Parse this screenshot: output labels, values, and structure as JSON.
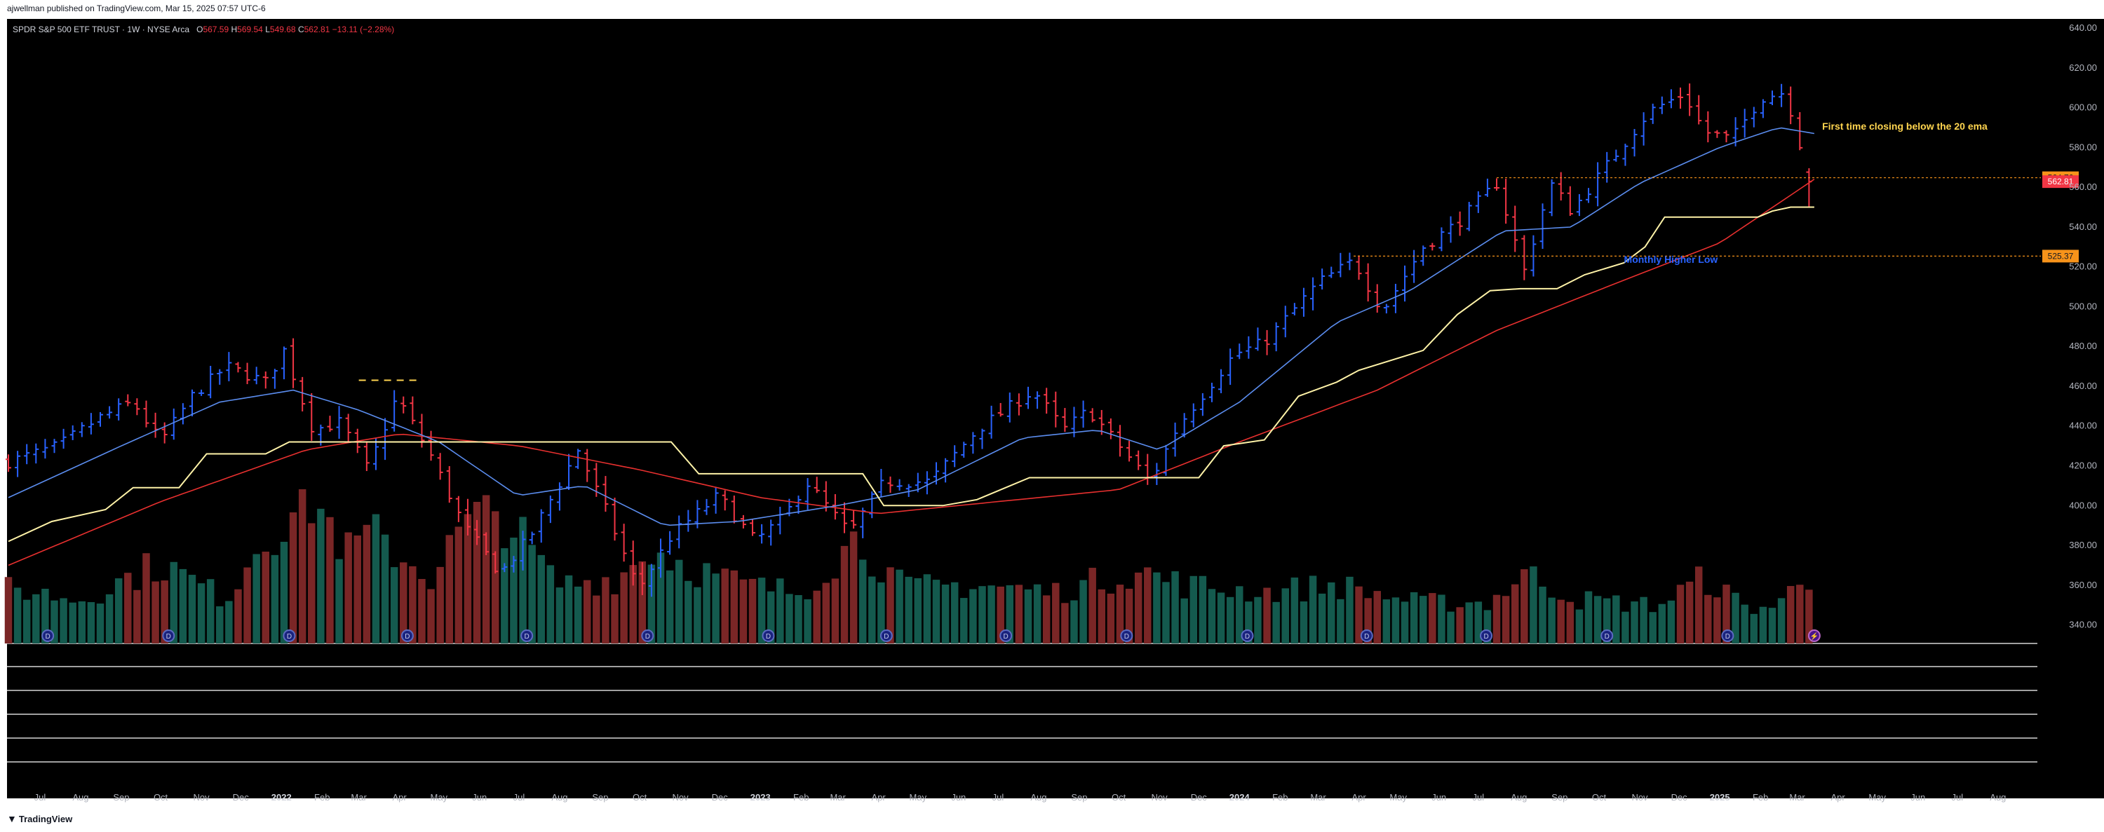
{
  "caption": "ajwellman published on TradingView.com, Mar 15, 2025 07:57 UTC-6",
  "brand": "TradingView",
  "legend": {
    "symbol": "SPDR S&P 500 ETF TRUST · 1W · NYSE Arca",
    "o_label": "O",
    "o": "567.59",
    "h_label": "H",
    "h": "569.54",
    "l_label": "L",
    "l": "549.68",
    "c_label": "C",
    "c": "562.81",
    "change": "−13.11 (−2.28%)"
  },
  "colors": {
    "up": "#2962ff",
    "down": "#f23645",
    "ema20": "#5b8def",
    "ema_slow": "#e8302f",
    "stop_line": "#fff3a8",
    "vol_up": "#145a4e",
    "vol_down": "#7a2626",
    "label_orange": "#f7931a",
    "label_red": "#f23645",
    "annotation_yellow": "#ffd54f",
    "annotation_blue": "#2962ff"
  },
  "chart_data": {
    "type": "ohlc",
    "y_axis": {
      "min": 330,
      "max": 640,
      "ticks": [
        340,
        360,
        380,
        400,
        420,
        440,
        460,
        480,
        500,
        520,
        540,
        560,
        580,
        600,
        620,
        640
      ]
    },
    "x_axis": {
      "start": "2021-06-07",
      "end": "2025-08-31",
      "tick_labels": [
        {
          "label": "Jul",
          "date": "2021-07-01",
          "bold": false
        },
        {
          "label": "Aug",
          "date": "2021-08-01",
          "bold": false
        },
        {
          "label": "Sep",
          "date": "2021-09-01",
          "bold": false
        },
        {
          "label": "Oct",
          "date": "2021-10-01",
          "bold": false
        },
        {
          "label": "Nov",
          "date": "2021-11-01",
          "bold": false
        },
        {
          "label": "Dec",
          "date": "2021-12-01",
          "bold": false
        },
        {
          "label": "2022",
          "date": "2022-01-01",
          "bold": true
        },
        {
          "label": "Feb",
          "date": "2022-02-01",
          "bold": false
        },
        {
          "label": "Mar",
          "date": "2022-03-01",
          "bold": false
        },
        {
          "label": "Apr",
          "date": "2022-04-01",
          "bold": false
        },
        {
          "label": "May",
          "date": "2022-05-01",
          "bold": false
        },
        {
          "label": "Jun",
          "date": "2022-06-01",
          "bold": false
        },
        {
          "label": "Jul",
          "date": "2022-07-01",
          "bold": false
        },
        {
          "label": "Aug",
          "date": "2022-08-01",
          "bold": false
        },
        {
          "label": "Sep",
          "date": "2022-09-01",
          "bold": false
        },
        {
          "label": "Oct",
          "date": "2022-10-01",
          "bold": false
        },
        {
          "label": "Nov",
          "date": "2022-11-01",
          "bold": false
        },
        {
          "label": "Dec",
          "date": "2022-12-01",
          "bold": false
        },
        {
          "label": "2023",
          "date": "2023-01-01",
          "bold": true
        },
        {
          "label": "Feb",
          "date": "2023-02-01",
          "bold": false
        },
        {
          "label": "Mar",
          "date": "2023-03-01",
          "bold": false
        },
        {
          "label": "Apr",
          "date": "2023-04-01",
          "bold": false
        },
        {
          "label": "May",
          "date": "2023-05-01",
          "bold": false
        },
        {
          "label": "Jun",
          "date": "2023-06-01",
          "bold": false
        },
        {
          "label": "Jul",
          "date": "2023-07-01",
          "bold": false
        },
        {
          "label": "Aug",
          "date": "2023-08-01",
          "bold": false
        },
        {
          "label": "Sep",
          "date": "2023-09-01",
          "bold": false
        },
        {
          "label": "Oct",
          "date": "2023-10-01",
          "bold": false
        },
        {
          "label": "Nov",
          "date": "2023-11-01",
          "bold": false
        },
        {
          "label": "Dec",
          "date": "2023-12-01",
          "bold": false
        },
        {
          "label": "2024",
          "date": "2024-01-01",
          "bold": true
        },
        {
          "label": "Feb",
          "date": "2024-02-01",
          "bold": false
        },
        {
          "label": "Mar",
          "date": "2024-03-01",
          "bold": false
        },
        {
          "label": "Apr",
          "date": "2024-04-01",
          "bold": false
        },
        {
          "label": "May",
          "date": "2024-05-01",
          "bold": false
        },
        {
          "label": "Jun",
          "date": "2024-06-01",
          "bold": false
        },
        {
          "label": "Jul",
          "date": "2024-07-01",
          "bold": false
        },
        {
          "label": "Aug",
          "date": "2024-08-01",
          "bold": false
        },
        {
          "label": "Sep",
          "date": "2024-09-01",
          "bold": false
        },
        {
          "label": "Oct",
          "date": "2024-10-01",
          "bold": false
        },
        {
          "label": "Nov",
          "date": "2024-11-01",
          "bold": false
        },
        {
          "label": "Dec",
          "date": "2024-12-01",
          "bold": false
        },
        {
          "label": "2025",
          "date": "2025-01-01",
          "bold": true
        },
        {
          "label": "Feb",
          "date": "2025-02-01",
          "bold": false
        },
        {
          "label": "Mar",
          "date": "2025-03-01",
          "bold": false
        },
        {
          "label": "Apr",
          "date": "2025-04-01",
          "bold": false
        },
        {
          "label": "May",
          "date": "2025-05-01",
          "bold": false
        },
        {
          "label": "Jun",
          "date": "2025-06-01",
          "bold": false
        },
        {
          "label": "Jul",
          "date": "2025-07-01",
          "bold": false
        },
        {
          "label": "Aug",
          "date": "2025-08-01",
          "bold": false
        }
      ]
    },
    "close_anchors": [
      [
        "2021-06-07",
        422
      ],
      [
        "2021-07-15",
        430
      ],
      [
        "2021-08-15",
        444
      ],
      [
        "2021-09-10",
        452
      ],
      [
        "2021-10-01",
        432
      ],
      [
        "2021-10-25",
        455
      ],
      [
        "2021-11-20",
        470
      ],
      [
        "2021-12-20",
        462
      ],
      [
        "2022-01-03",
        478
      ],
      [
        "2022-01-25",
        438
      ],
      [
        "2022-02-15",
        442
      ],
      [
        "2022-03-08",
        418
      ],
      [
        "2022-03-30",
        455
      ],
      [
        "2022-04-25",
        425
      ],
      [
        "2022-05-20",
        390
      ],
      [
        "2022-06-17",
        366
      ],
      [
        "2022-07-10",
        385
      ],
      [
        "2022-08-15",
        428
      ],
      [
        "2022-09-05",
        398
      ],
      [
        "2022-09-30",
        358
      ],
      [
        "2022-10-25",
        385
      ],
      [
        "2022-11-30",
        405
      ],
      [
        "2022-12-28",
        382
      ],
      [
        "2023-01-20",
        395
      ],
      [
        "2023-02-05",
        412
      ],
      [
        "2023-03-10",
        386
      ],
      [
        "2023-04-05",
        412
      ],
      [
        "2023-05-10",
        412
      ],
      [
        "2023-06-15",
        438
      ],
      [
        "2023-07-28",
        458
      ],
      [
        "2023-08-20",
        438
      ],
      [
        "2023-09-08",
        448
      ],
      [
        "2023-10-25",
        412
      ],
      [
        "2023-11-15",
        440
      ],
      [
        "2023-12-28",
        476
      ],
      [
        "2024-01-20",
        482
      ],
      [
        "2024-03-01",
        512
      ],
      [
        "2024-03-28",
        523
      ],
      [
        "2024-04-19",
        498
      ],
      [
        "2024-05-20",
        530
      ],
      [
        "2024-06-15",
        542
      ],
      [
        "2024-07-15",
        562
      ],
      [
        "2024-08-05",
        518
      ],
      [
        "2024-08-25",
        562
      ],
      [
        "2024-09-10",
        548
      ],
      [
        "2024-10-20",
        582
      ],
      [
        "2024-11-08",
        598
      ],
      [
        "2024-12-05",
        607
      ],
      [
        "2024-12-20",
        588
      ],
      [
        "2025-01-10",
        584
      ],
      [
        "2025-02-01",
        605
      ],
      [
        "2025-02-20",
        608
      ],
      [
        "2025-03-03",
        582
      ],
      [
        "2025-03-14",
        562.81
      ]
    ],
    "ema20_anchors": [
      [
        "2021-06-07",
        404
      ],
      [
        "2021-09-01",
        430
      ],
      [
        "2021-11-15",
        452
      ],
      [
        "2022-01-10",
        458
      ],
      [
        "2022-03-01",
        448
      ],
      [
        "2022-05-01",
        432
      ],
      [
        "2022-06-30",
        405
      ],
      [
        "2022-08-20",
        410
      ],
      [
        "2022-10-20",
        390
      ],
      [
        "2022-12-15",
        392
      ],
      [
        "2023-03-01",
        400
      ],
      [
        "2023-05-01",
        408
      ],
      [
        "2023-07-20",
        434
      ],
      [
        "2023-09-15",
        438
      ],
      [
        "2023-11-01",
        428
      ],
      [
        "2024-01-01",
        452
      ],
      [
        "2024-03-15",
        492
      ],
      [
        "2024-05-10",
        508
      ],
      [
        "2024-07-20",
        538
      ],
      [
        "2024-09-10",
        540
      ],
      [
        "2024-11-01",
        562
      ],
      [
        "2025-01-01",
        580
      ],
      [
        "2025-02-15",
        590
      ],
      [
        "2025-03-14",
        587
      ]
    ],
    "ema_slow_anchors": [
      [
        "2021-06-07",
        370
      ],
      [
        "2021-10-01",
        402
      ],
      [
        "2022-01-20",
        428
      ],
      [
        "2022-04-01",
        436
      ],
      [
        "2022-07-01",
        430
      ],
      [
        "2022-10-01",
        418
      ],
      [
        "2023-01-01",
        404
      ],
      [
        "2023-04-01",
        396
      ],
      [
        "2023-07-01",
        402
      ],
      [
        "2023-10-01",
        408
      ],
      [
        "2024-01-01",
        432
      ],
      [
        "2024-04-15",
        458
      ],
      [
        "2024-07-15",
        488
      ],
      [
        "2024-10-15",
        512
      ],
      [
        "2025-01-01",
        532
      ],
      [
        "2025-02-15",
        552
      ],
      [
        "2025-03-14",
        564
      ]
    ],
    "stop_line": [
      [
        "2021-06-07",
        382
      ],
      [
        "2021-07-10",
        392
      ],
      [
        "2021-08-20",
        398
      ],
      [
        "2021-09-10",
        409
      ],
      [
        "2021-10-15",
        409
      ],
      [
        "2021-11-05",
        426
      ],
      [
        "2021-12-20",
        426
      ],
      [
        "2022-01-07",
        432
      ],
      [
        "2022-09-25",
        432
      ],
      [
        "2022-10-25",
        432
      ],
      [
        "2022-11-15",
        416
      ],
      [
        "2023-03-20",
        416
      ],
      [
        "2023-04-05",
        400
      ],
      [
        "2023-05-15",
        400
      ],
      [
        "2023-05-20",
        400
      ],
      [
        "2023-06-15",
        403
      ],
      [
        "2023-07-25",
        414
      ],
      [
        "2023-10-25",
        414
      ],
      [
        "2023-12-01",
        414
      ],
      [
        "2023-12-20",
        430
      ],
      [
        "2024-01-20",
        433
      ],
      [
        "2024-02-15",
        455
      ],
      [
        "2024-03-15",
        462
      ],
      [
        "2024-04-01",
        468
      ],
      [
        "2024-05-20",
        478
      ],
      [
        "2024-06-15",
        496
      ],
      [
        "2024-07-10",
        508
      ],
      [
        "2024-08-02",
        509
      ],
      [
        "2024-08-30",
        509
      ],
      [
        "2024-09-20",
        516
      ],
      [
        "2024-10-20",
        522
      ],
      [
        "2024-11-05",
        530
      ],
      [
        "2024-11-20",
        545
      ],
      [
        "2025-01-30",
        545
      ],
      [
        "2025-02-10",
        548
      ],
      [
        "2025-02-24",
        550
      ],
      [
        "2025-03-14",
        550
      ]
    ],
    "volume_anchors": [
      [
        "2021-06-07",
        38
      ],
      [
        "2021-08-01",
        30
      ],
      [
        "2021-10-01",
        55
      ],
      [
        "2021-11-20",
        30
      ],
      [
        "2021-12-15",
        70
      ],
      [
        "2022-01-25",
        100
      ],
      [
        "2022-02-20",
        62
      ],
      [
        "2022-03-10",
        75
      ],
      [
        "2022-04-25",
        45
      ],
      [
        "2022-05-20",
        80
      ],
      [
        "2022-06-17",
        90
      ],
      [
        "2022-07-30",
        40
      ],
      [
        "2022-09-15",
        45
      ],
      [
        "2022-10-10",
        65
      ],
      [
        "2022-11-15",
        50
      ],
      [
        "2022-12-20",
        40
      ],
      [
        "2023-02-01",
        35
      ],
      [
        "2023-03-15",
        72
      ],
      [
        "2023-04-20",
        38
      ],
      [
        "2023-06-15",
        40
      ],
      [
        "2023-08-15",
        35
      ],
      [
        "2023-10-15",
        50
      ],
      [
        "2023-11-20",
        40
      ],
      [
        "2024-01-20",
        35
      ],
      [
        "2024-03-15",
        40
      ],
      [
        "2024-05-15",
        28
      ],
      [
        "2024-07-10",
        28
      ],
      [
        "2024-08-05",
        48
      ],
      [
        "2024-09-15",
        30
      ],
      [
        "2024-11-15",
        26
      ],
      [
        "2024-12-20",
        45
      ],
      [
        "2025-01-20",
        25
      ],
      [
        "2025-02-15",
        25
      ],
      [
        "2025-03-05",
        48
      ],
      [
        "2025-03-14",
        45
      ]
    ],
    "levels": [
      {
        "price": 564.76,
        "label": "564.76",
        "from": "2024-07-15",
        "color": "#f7931a"
      },
      {
        "price": 525.37,
        "label": "525.37",
        "from": "2024-03-28",
        "color": "#f7931a"
      }
    ],
    "last_close_label": "562.81",
    "annotations": [
      {
        "text": "First time closing below the 20 ema",
        "date": "2025-03-20",
        "price": 589,
        "color": "#ffd54f"
      },
      {
        "text": "Monthly Higher Low",
        "date": "2024-10-20",
        "price": 522,
        "color": "#2962ff"
      }
    ],
    "dashed_marks": [
      {
        "from": "2022-03-01",
        "to": "2022-04-15",
        "price": 463
      }
    ],
    "events": [
      "2021-07-07",
      "2021-10-07",
      "2022-01-07",
      "2022-04-07",
      "2022-07-07",
      "2022-10-07",
      "2023-01-07",
      "2023-04-07",
      "2023-07-07",
      "2023-10-07",
      "2024-01-07",
      "2024-04-07",
      "2024-07-07",
      "2024-10-07",
      "2025-01-07"
    ],
    "last_event": "2025-03-14"
  }
}
